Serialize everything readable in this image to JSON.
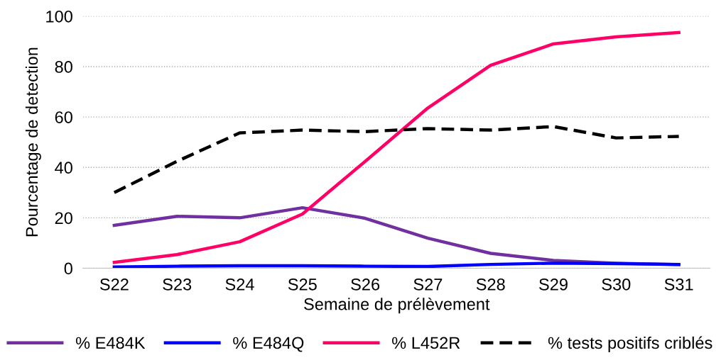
{
  "chart_data": {
    "type": "line",
    "xlabel": "Semaine de prélèvement",
    "ylabel": "Pourcentage de detection",
    "categories": [
      "S22",
      "S23",
      "S24",
      "S25",
      "S26",
      "S27",
      "S28",
      "S29",
      "S30",
      "S31"
    ],
    "series": [
      {
        "name": "% E484K",
        "color": "#7030a0",
        "values": [
          17,
          20.6,
          20,
          24,
          19.8,
          11.9,
          5.9,
          3.1,
          2,
          1.4
        ]
      },
      {
        "name": "% E484Q",
        "color": "#0000ff",
        "values": [
          0.5,
          0.8,
          1,
          1,
          0.8,
          0.7,
          1.5,
          2,
          1.8,
          1.5
        ]
      },
      {
        "name": "% L452R",
        "color": "#ff0066",
        "values": [
          2.3,
          5.4,
          10.5,
          21.5,
          42.4,
          63.6,
          80.5,
          89,
          91.8,
          93.5
        ]
      },
      {
        "name": "% tests positifs criblés",
        "color": "#000000",
        "line_style": "dashed",
        "values": [
          30,
          42.4,
          53.7,
          54.8,
          54.2,
          55.4,
          54.8,
          56.2,
          51.7,
          52.3
        ]
      }
    ],
    "ylim": [
      0,
      100
    ],
    "yticks": [
      0,
      20,
      40,
      60,
      80,
      100
    ],
    "grid": "y",
    "legend": "bottom",
    "marker": "none"
  }
}
